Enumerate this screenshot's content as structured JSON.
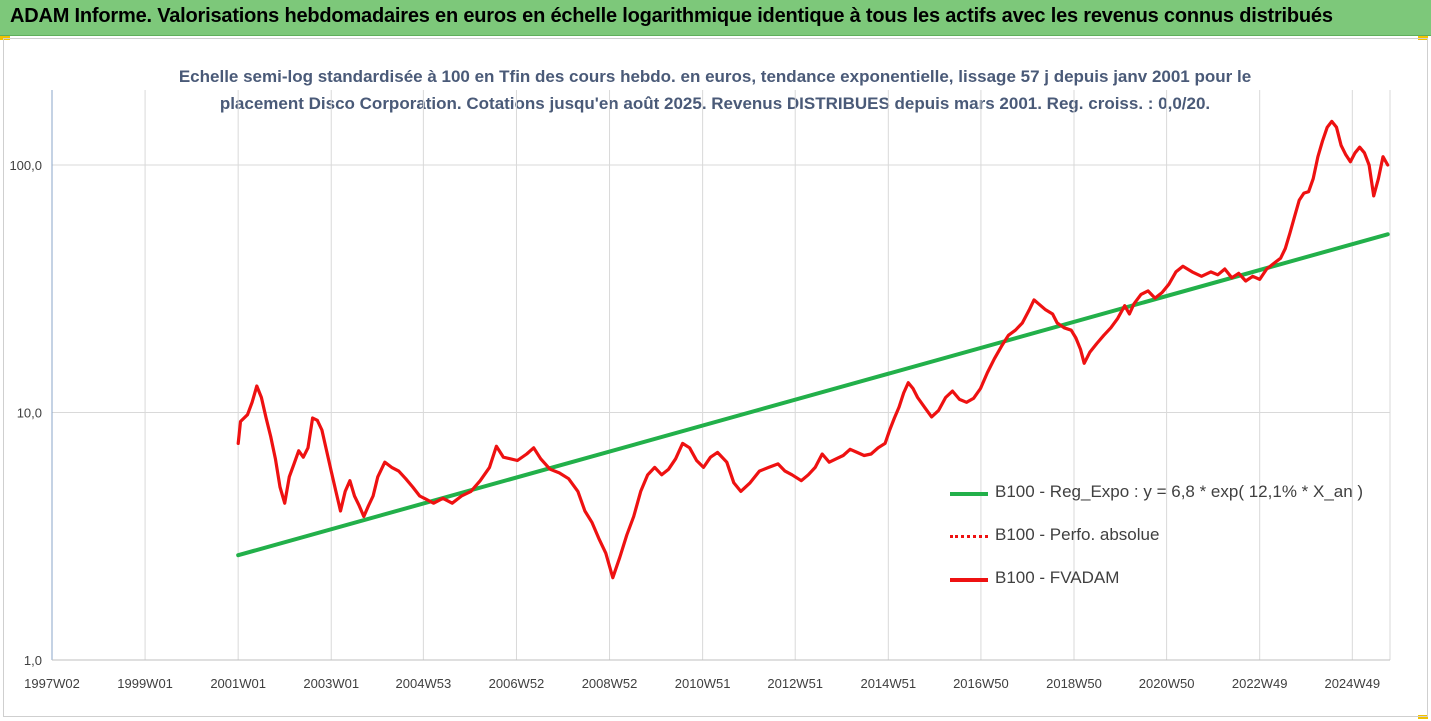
{
  "banner": {
    "title": "ADAM Informe. Valorisations hebdomadaires en euros en échelle logarithmique identique à tous les actifs avec les revenus connus distribués"
  },
  "chart_title": {
    "line1": "Echelle semi-log standardisée à 100 en Tfin des cours hebdo. en euros, tendance exponentielle, lissage 57 j depuis janv 2001 pour le",
    "line2": "placement Disco Corporation. Cotations jusqu'en août 2025. Revenus DISTRIBUES depuis mars 2001. Reg. croiss. : 0,0/20."
  },
  "legend": [
    {
      "label": "B100 - Reg_Expo : y = 6,8 * exp( 12,1% *  X_an )",
      "color": "#22b04a",
      "style": "solid"
    },
    {
      "label": "B100 - Perfo. absolue",
      "color": "#ee1111",
      "style": "dotted"
    },
    {
      "label": "B100 - FVADAM",
      "color": "#ee1111",
      "style": "solid"
    }
  ],
  "chart_data": {
    "type": "line",
    "scale": "log",
    "ylim": [
      1,
      200
    ],
    "y_ticks": [
      1,
      10,
      100
    ],
    "y_tick_labels": [
      "1,0",
      "10,0",
      "100,0"
    ],
    "x_range": [
      1997.0,
      2025.75
    ],
    "x_ticks": [
      {
        "label": "1997W02",
        "x": 1997.0
      },
      {
        "label": "1999W01",
        "x": 1999.0
      },
      {
        "label": "2001W01",
        "x": 2001.0
      },
      {
        "label": "2003W01",
        "x": 2003.0
      },
      {
        "label": "2004W53",
        "x": 2004.98
      },
      {
        "label": "2006W52",
        "x": 2006.98
      },
      {
        "label": "2008W52",
        "x": 2008.98
      },
      {
        "label": "2010W51",
        "x": 2010.98
      },
      {
        "label": "2012W51",
        "x": 2012.97
      },
      {
        "label": "2014W51",
        "x": 2014.97
      },
      {
        "label": "2016W50",
        "x": 2016.96
      },
      {
        "label": "2018W50",
        "x": 2018.96
      },
      {
        "label": "2020W50",
        "x": 2020.95
      },
      {
        "label": "2022W49",
        "x": 2022.95
      },
      {
        "label": "2024W49",
        "x": 2024.94
      }
    ],
    "grid": true,
    "legend_position": "bottom-right",
    "series": [
      {
        "name": "B100 - Reg_Expo : y = 6,8 * exp( 12,1% *  X_an )",
        "color": "#22b04a",
        "points": [
          [
            2001.0,
            2.65
          ],
          [
            2025.7,
            52.5
          ]
        ]
      },
      {
        "name": "B100 - FVADAM",
        "color": "#ee1111",
        "points": [
          [
            2001.0,
            7.5
          ],
          [
            2001.05,
            9.2
          ],
          [
            2001.2,
            9.8
          ],
          [
            2001.3,
            11.0
          ],
          [
            2001.4,
            12.8
          ],
          [
            2001.5,
            11.5
          ],
          [
            2001.6,
            9.5
          ],
          [
            2001.7,
            8.0
          ],
          [
            2001.8,
            6.5
          ],
          [
            2001.9,
            5.0
          ],
          [
            2002.0,
            4.3
          ],
          [
            2002.1,
            5.5
          ],
          [
            2002.2,
            6.2
          ],
          [
            2002.3,
            7.0
          ],
          [
            2002.4,
            6.6
          ],
          [
            2002.5,
            7.2
          ],
          [
            2002.6,
            9.5
          ],
          [
            2002.7,
            9.3
          ],
          [
            2002.8,
            8.5
          ],
          [
            2002.9,
            7.0
          ],
          [
            2003.0,
            5.8
          ],
          [
            2003.1,
            4.8
          ],
          [
            2003.2,
            4.0
          ],
          [
            2003.3,
            4.8
          ],
          [
            2003.4,
            5.3
          ],
          [
            2003.5,
            4.6
          ],
          [
            2003.6,
            4.2
          ],
          [
            2003.7,
            3.8
          ],
          [
            2003.8,
            4.2
          ],
          [
            2003.9,
            4.6
          ],
          [
            2004.0,
            5.5
          ],
          [
            2004.15,
            6.3
          ],
          [
            2004.3,
            6.0
          ],
          [
            2004.45,
            5.8
          ],
          [
            2004.6,
            5.4
          ],
          [
            2004.75,
            5.0
          ],
          [
            2004.9,
            4.6
          ],
          [
            2005.0,
            4.5
          ],
          [
            2005.2,
            4.3
          ],
          [
            2005.4,
            4.5
          ],
          [
            2005.6,
            4.3
          ],
          [
            2005.8,
            4.6
          ],
          [
            2006.0,
            4.8
          ],
          [
            2006.2,
            5.3
          ],
          [
            2006.4,
            6.0
          ],
          [
            2006.55,
            7.3
          ],
          [
            2006.7,
            6.6
          ],
          [
            2006.85,
            6.5
          ],
          [
            2007.0,
            6.4
          ],
          [
            2007.2,
            6.8
          ],
          [
            2007.35,
            7.2
          ],
          [
            2007.5,
            6.5
          ],
          [
            2007.7,
            5.9
          ],
          [
            2007.9,
            5.7
          ],
          [
            2008.1,
            5.4
          ],
          [
            2008.3,
            4.8
          ],
          [
            2008.45,
            4.0
          ],
          [
            2008.6,
            3.6
          ],
          [
            2008.75,
            3.1
          ],
          [
            2008.9,
            2.7
          ],
          [
            2009.05,
            2.15
          ],
          [
            2009.2,
            2.6
          ],
          [
            2009.35,
            3.2
          ],
          [
            2009.5,
            3.8
          ],
          [
            2009.65,
            4.8
          ],
          [
            2009.8,
            5.6
          ],
          [
            2009.95,
            6.0
          ],
          [
            2010.1,
            5.6
          ],
          [
            2010.25,
            5.9
          ],
          [
            2010.4,
            6.5
          ],
          [
            2010.55,
            7.5
          ],
          [
            2010.7,
            7.2
          ],
          [
            2010.85,
            6.4
          ],
          [
            2011.0,
            6.0
          ],
          [
            2011.15,
            6.6
          ],
          [
            2011.3,
            6.9
          ],
          [
            2011.5,
            6.3
          ],
          [
            2011.65,
            5.2
          ],
          [
            2011.8,
            4.8
          ],
          [
            2012.0,
            5.2
          ],
          [
            2012.2,
            5.8
          ],
          [
            2012.4,
            6.0
          ],
          [
            2012.6,
            6.2
          ],
          [
            2012.75,
            5.8
          ],
          [
            2012.9,
            5.6
          ],
          [
            2013.1,
            5.3
          ],
          [
            2013.25,
            5.6
          ],
          [
            2013.4,
            6.0
          ],
          [
            2013.55,
            6.8
          ],
          [
            2013.7,
            6.3
          ],
          [
            2013.85,
            6.5
          ],
          [
            2014.0,
            6.7
          ],
          [
            2014.15,
            7.1
          ],
          [
            2014.3,
            6.9
          ],
          [
            2014.45,
            6.7
          ],
          [
            2014.6,
            6.8
          ],
          [
            2014.75,
            7.2
          ],
          [
            2014.9,
            7.5
          ],
          [
            2015.0,
            8.5
          ],
          [
            2015.1,
            9.5
          ],
          [
            2015.2,
            10.5
          ],
          [
            2015.3,
            12.0
          ],
          [
            2015.4,
            13.2
          ],
          [
            2015.5,
            12.5
          ],
          [
            2015.6,
            11.5
          ],
          [
            2015.75,
            10.5
          ],
          [
            2015.9,
            9.6
          ],
          [
            2016.05,
            10.2
          ],
          [
            2016.2,
            11.5
          ],
          [
            2016.35,
            12.2
          ],
          [
            2016.5,
            11.3
          ],
          [
            2016.65,
            11.0
          ],
          [
            2016.8,
            11.4
          ],
          [
            2016.95,
            12.5
          ],
          [
            2017.1,
            14.5
          ],
          [
            2017.25,
            16.5
          ],
          [
            2017.4,
            18.5
          ],
          [
            2017.55,
            20.5
          ],
          [
            2017.7,
            21.5
          ],
          [
            2017.85,
            23.0
          ],
          [
            2018.0,
            26.0
          ],
          [
            2018.1,
            28.5
          ],
          [
            2018.2,
            27.5
          ],
          [
            2018.35,
            26.0
          ],
          [
            2018.5,
            25.0
          ],
          [
            2018.6,
            23.0
          ],
          [
            2018.75,
            22.0
          ],
          [
            2018.9,
            21.5
          ],
          [
            2019.0,
            20.0
          ],
          [
            2019.1,
            18.0
          ],
          [
            2019.18,
            15.8
          ],
          [
            2019.3,
            17.5
          ],
          [
            2019.45,
            19.0
          ],
          [
            2019.6,
            20.5
          ],
          [
            2019.75,
            22.0
          ],
          [
            2019.9,
            24.0
          ],
          [
            2020.05,
            27.0
          ],
          [
            2020.15,
            25.0
          ],
          [
            2020.25,
            27.5
          ],
          [
            2020.4,
            30.0
          ],
          [
            2020.55,
            31.0
          ],
          [
            2020.7,
            29.0
          ],
          [
            2020.85,
            30.5
          ],
          [
            2021.0,
            33.0
          ],
          [
            2021.15,
            37.0
          ],
          [
            2021.3,
            39.0
          ],
          [
            2021.5,
            37.0
          ],
          [
            2021.7,
            35.5
          ],
          [
            2021.9,
            37.0
          ],
          [
            2022.05,
            36.0
          ],
          [
            2022.2,
            38.0
          ],
          [
            2022.35,
            35.0
          ],
          [
            2022.5,
            36.5
          ],
          [
            2022.65,
            34.0
          ],
          [
            2022.8,
            35.5
          ],
          [
            2022.95,
            34.5
          ],
          [
            2023.1,
            38.0
          ],
          [
            2023.25,
            40.0
          ],
          [
            2023.4,
            42.0
          ],
          [
            2023.5,
            46.0
          ],
          [
            2023.6,
            53.0
          ],
          [
            2023.7,
            62.0
          ],
          [
            2023.8,
            72.0
          ],
          [
            2023.9,
            77.0
          ],
          [
            2024.0,
            78.0
          ],
          [
            2024.1,
            88.0
          ],
          [
            2024.2,
            108.0
          ],
          [
            2024.3,
            125.0
          ],
          [
            2024.4,
            142.0
          ],
          [
            2024.5,
            150.0
          ],
          [
            2024.6,
            142.0
          ],
          [
            2024.7,
            120.0
          ],
          [
            2024.8,
            110.0
          ],
          [
            2024.9,
            103.0
          ],
          [
            2025.0,
            112.0
          ],
          [
            2025.1,
            118.0
          ],
          [
            2025.2,
            112.0
          ],
          [
            2025.3,
            100.0
          ],
          [
            2025.4,
            75.0
          ],
          [
            2025.5,
            88.0
          ],
          [
            2025.6,
            108.0
          ],
          [
            2025.7,
            100.0
          ]
        ]
      }
    ]
  }
}
